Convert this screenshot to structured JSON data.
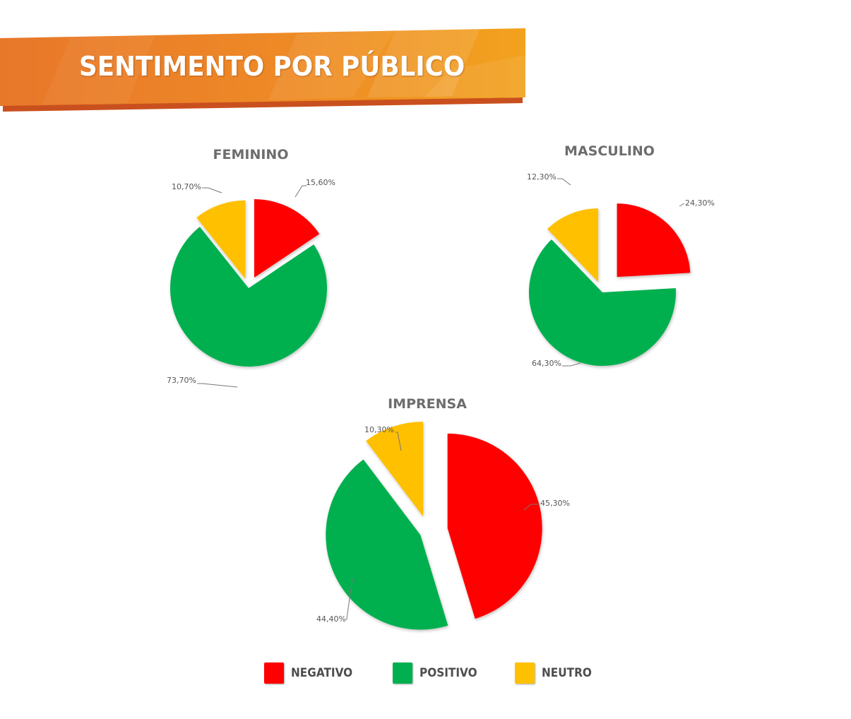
{
  "header": {
    "title": "SENTIMENTO POR PÚBLICO"
  },
  "colors": {
    "negativo": "#FF0000",
    "positivo": "#00B050",
    "neutro": "#FFC000",
    "banner_start": "#E8772A",
    "banner_end": "#F29B1F",
    "banner_shadow": "#C9501E"
  },
  "legend": {
    "items": [
      {
        "label": "NEGATIVO",
        "color": "#FF0000"
      },
      {
        "label": "POSITIVO",
        "color": "#00B050"
      },
      {
        "label": "NEUTRO",
        "color": "#FFC000"
      }
    ]
  },
  "chart_data": [
    {
      "type": "pie",
      "title": "FEMININO",
      "categories": [
        "NEGATIVO",
        "POSITIVO",
        "NEUTRO"
      ],
      "values": [
        15.6,
        73.7,
        10.7
      ],
      "data_labels": [
        "15,60%",
        "73,70%",
        "10,70%"
      ],
      "exploded": true
    },
    {
      "type": "pie",
      "title": "MASCULINO",
      "categories": [
        "NEGATIVO",
        "POSITIVO",
        "NEUTRO"
      ],
      "values": [
        24.3,
        64.3,
        12.3
      ],
      "data_labels": [
        "24,30%",
        "64,30%",
        "12,30%"
      ],
      "exploded": true
    },
    {
      "type": "pie",
      "title": "IMPRENSA",
      "categories": [
        "NEGATIVO",
        "POSITIVO",
        "NEUTRO"
      ],
      "values": [
        45.3,
        44.4,
        10.3
      ],
      "data_labels": [
        "45,30%",
        "44,40%",
        "10,30%"
      ],
      "exploded": true
    }
  ]
}
